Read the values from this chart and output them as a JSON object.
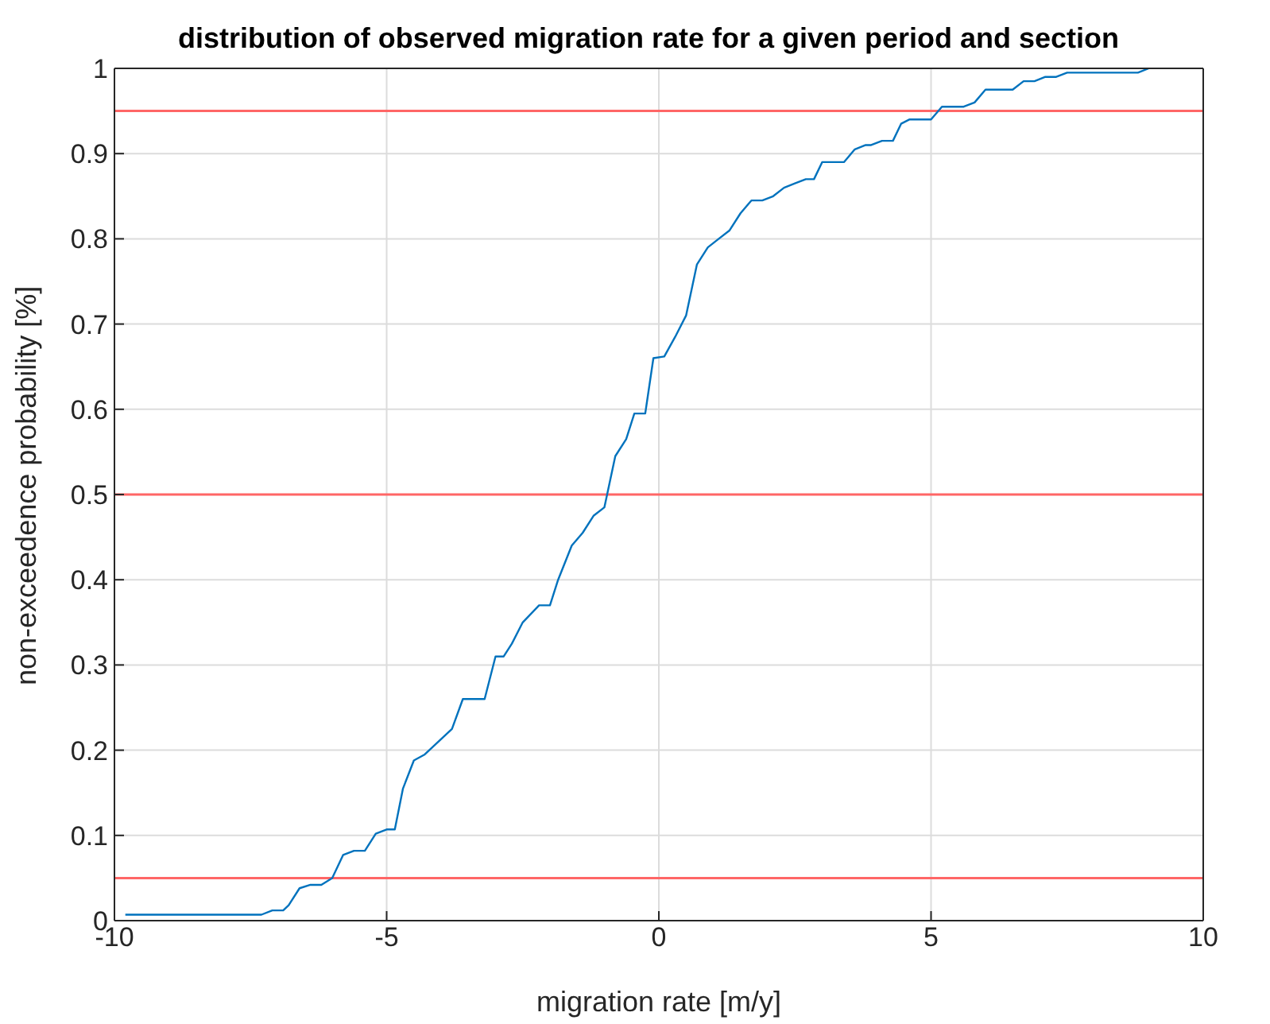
{
  "chart_data": {
    "type": "line",
    "title": "distribution of observed migration rate for a given period and section",
    "xlabel": "migration rate [m/y]",
    "ylabel": "non-exceedence probability [%]",
    "x": [
      -9.8,
      -7.3,
      -7.1,
      -6.9,
      -6.8,
      -6.6,
      -6.4,
      -6.2,
      -6.0,
      -5.8,
      -5.6,
      -5.4,
      -5.2,
      -5.0,
      -4.85,
      -4.7,
      -4.5,
      -4.3,
      -3.8,
      -3.6,
      -3.2,
      -3.0,
      -2.85,
      -2.7,
      -2.5,
      -2.2,
      -2.0,
      -1.85,
      -1.6,
      -1.4,
      -1.2,
      -1.0,
      -0.8,
      -0.6,
      -0.45,
      -0.25,
      -0.1,
      0.1,
      0.3,
      0.5,
      0.7,
      0.9,
      1.1,
      1.3,
      1.5,
      1.7,
      1.9,
      2.1,
      2.3,
      2.5,
      2.7,
      2.85,
      3.0,
      3.4,
      3.6,
      3.8,
      3.9,
      4.1,
      4.3,
      4.45,
      4.6,
      5.0,
      5.2,
      5.6,
      5.8,
      6.0,
      6.5,
      6.7,
      6.9,
      7.1,
      7.3,
      7.5,
      8.8,
      9.0
    ],
    "series": [
      {
        "color": "#0072bd",
        "values": [
          0.007,
          0.007,
          0.012,
          0.012,
          0.018,
          0.038,
          0.042,
          0.042,
          0.05,
          0.077,
          0.082,
          0.082,
          0.102,
          0.107,
          0.107,
          0.155,
          0.188,
          0.195,
          0.225,
          0.26,
          0.26,
          0.31,
          0.31,
          0.325,
          0.35,
          0.37,
          0.37,
          0.4,
          0.44,
          0.455,
          0.475,
          0.485,
          0.545,
          0.565,
          0.595,
          0.595,
          0.66,
          0.662,
          0.685,
          0.71,
          0.77,
          0.79,
          0.8,
          0.81,
          0.83,
          0.845,
          0.845,
          0.85,
          0.86,
          0.865,
          0.87,
          0.87,
          0.89,
          0.89,
          0.905,
          0.91,
          0.91,
          0.915,
          0.915,
          0.935,
          0.94,
          0.94,
          0.955,
          0.955,
          0.96,
          0.975,
          0.975,
          0.985,
          0.985,
          0.99,
          0.99,
          0.995,
          0.995,
          1.0
        ]
      }
    ],
    "ref_lines": [
      {
        "axis": "y",
        "value": 0.05,
        "color": "#ff6666"
      },
      {
        "axis": "y",
        "value": 0.5,
        "color": "#ff6666"
      },
      {
        "axis": "y",
        "value": 0.95,
        "color": "#ff6666"
      }
    ],
    "xlim": [
      -10,
      10
    ],
    "xticks": [
      -10,
      -5,
      0,
      5,
      10
    ],
    "ylim": [
      0,
      1
    ],
    "yticks": [
      0,
      0.1,
      0.2,
      0.3,
      0.4,
      0.5,
      0.6,
      0.7,
      0.8,
      0.9,
      1
    ],
    "grid": true
  }
}
